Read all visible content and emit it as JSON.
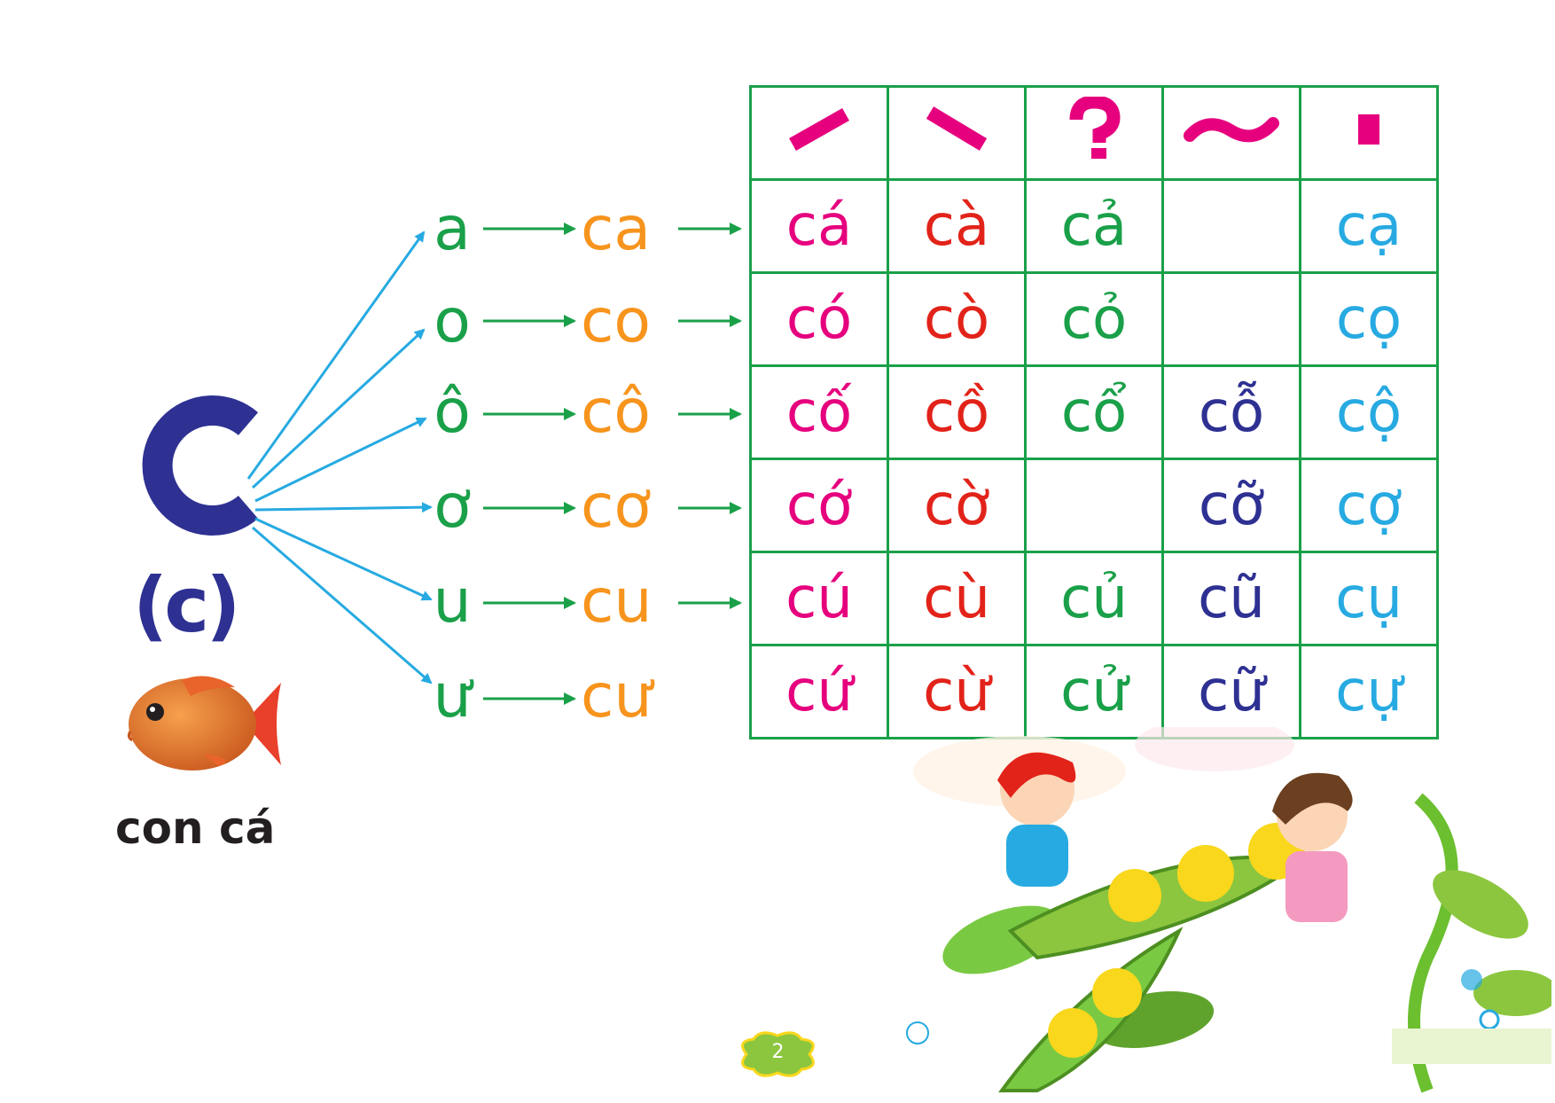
{
  "letter": {
    "big": "C",
    "small": "(c)",
    "caption": "con cá"
  },
  "vowels": [
    "a",
    "o",
    "ô",
    "ơ",
    "u",
    "ư"
  ],
  "syllables": [
    "ca",
    "co",
    "cô",
    "cơ",
    "cu",
    "cư"
  ],
  "tone_marks": [
    "sắc-mark-icon",
    "huyền-mark-icon",
    "hỏi-mark-icon",
    "ngã-mark-icon",
    "nặng-mark-icon"
  ],
  "table": [
    [
      "cá",
      "cà",
      "cả",
      "",
      "cạ"
    ],
    [
      "có",
      "cò",
      "cỏ",
      "",
      "cọ"
    ],
    [
      "cố",
      "cồ",
      "cổ",
      "cỗ",
      "cộ"
    ],
    [
      "cớ",
      "cờ",
      "",
      "cỡ",
      "cợ"
    ],
    [
      "cú",
      "cù",
      "củ",
      "cũ",
      "cụ"
    ],
    [
      "cứ",
      "cừ",
      "cử",
      "cữ",
      "cự"
    ]
  ],
  "page_number": "2",
  "colors": {
    "sac": "#e6007e",
    "huyen": "#e2231a",
    "hoi": "#1aa049",
    "nga": "#2e3192",
    "nang": "#27aae1",
    "vowel": "#1aa049",
    "syllable": "#f7941d",
    "letter": "#2e3192",
    "arrow_blue": "#27aae1",
    "arrow_green": "#1aa049"
  }
}
